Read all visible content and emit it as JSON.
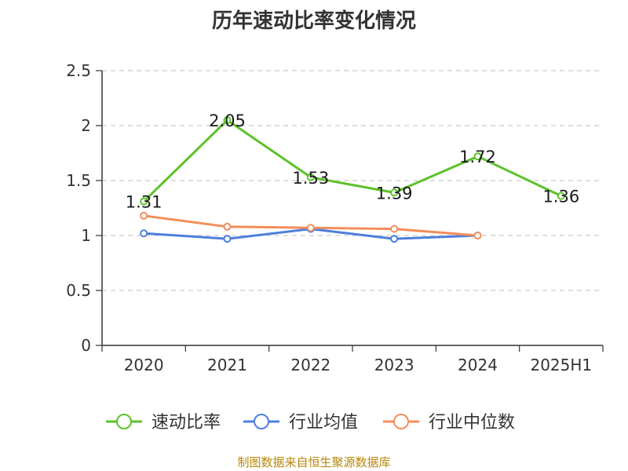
{
  "title": "历年速动比率变化情况",
  "source": "制图数据来自恒生聚源数据库",
  "chart_data": {
    "type": "line",
    "title": "历年速动比率变化情况",
    "categories": [
      "2020",
      "2021",
      "2022",
      "2023",
      "2024",
      "2025H1"
    ],
    "ylim": [
      0,
      2.5
    ],
    "yticks": [
      "0",
      "0.5",
      "1",
      "1.5",
      "2",
      "2.5"
    ],
    "grid": true,
    "legend_position": "bottom",
    "series": [
      {
        "name": "速动比率",
        "color": "#5cc22a",
        "values": [
          1.31,
          2.05,
          1.53,
          1.39,
          1.72,
          1.36
        ],
        "labels": [
          "1.31",
          "2.05",
          "1.53",
          "1.39",
          "1.72",
          "1.36"
        ]
      },
      {
        "name": "行业均值",
        "color": "#4d7fdb",
        "values": [
          1.02,
          0.97,
          1.06,
          0.97,
          1.0,
          null
        ]
      },
      {
        "name": "行业中位数",
        "color": "#f28e5c",
        "values": [
          1.18,
          1.08,
          1.07,
          1.06,
          1.0,
          null
        ]
      }
    ]
  }
}
